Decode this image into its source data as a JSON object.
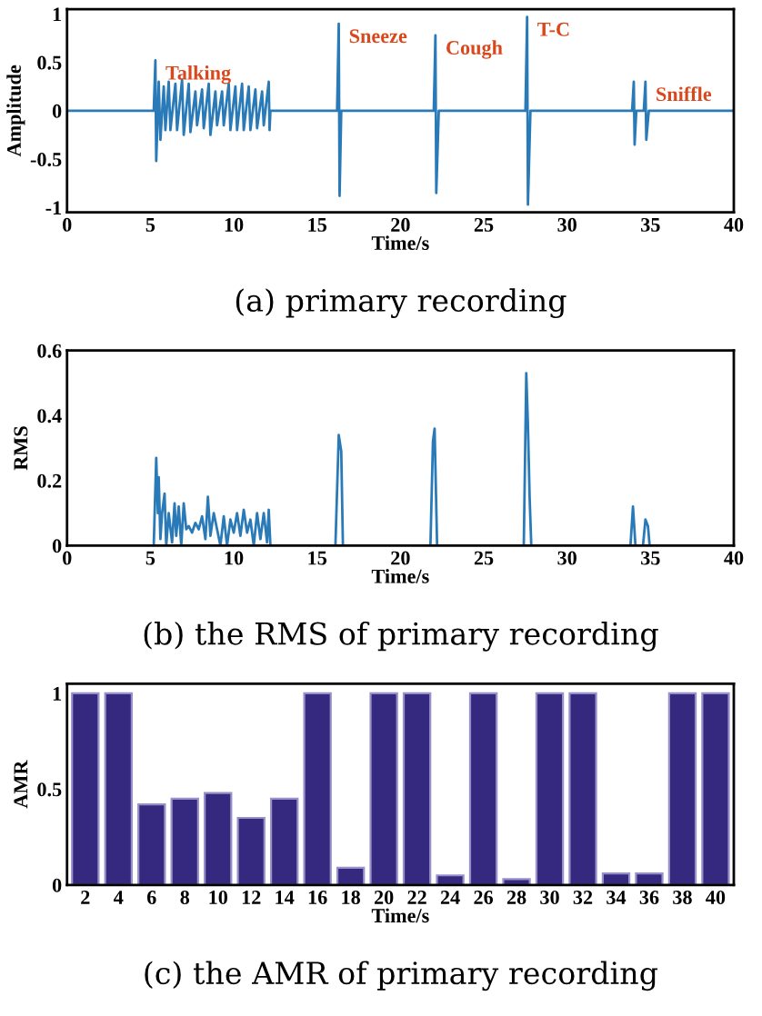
{
  "chart_data": [
    {
      "type": "line",
      "title": "(a) primary recording",
      "xlabel": "Time/s",
      "ylabel": "Amplitude",
      "xlim": [
        0,
        40
      ],
      "xticks": [
        0,
        5,
        10,
        15,
        20,
        25,
        30,
        35,
        40
      ],
      "ylim": [
        -1.05,
        1.05
      ],
      "yticks": [
        -1,
        -0.5,
        0,
        0.5,
        1
      ],
      "grid": false,
      "series": [
        {
          "color": "#2a7ab8",
          "x": [
            0,
            5.2,
            5.3,
            5.35,
            5.5,
            5.6,
            5.8,
            5.9,
            6.1,
            6.2,
            6.5,
            6.6,
            6.9,
            7.0,
            7.3,
            7.4,
            7.7,
            7.8,
            8.1,
            8.2,
            8.5,
            8.6,
            8.9,
            9.0,
            9.3,
            9.4,
            9.7,
            9.8,
            10.1,
            10.2,
            10.5,
            10.6,
            10.9,
            11.0,
            11.3,
            11.4,
            11.7,
            11.8,
            12.1,
            12.15,
            12.2,
            16.2,
            16.3,
            16.35,
            16.45,
            22.0,
            22.1,
            22.15,
            22.3,
            27.5,
            27.6,
            27.65,
            27.8,
            33.9,
            34.0,
            34.05,
            34.15,
            34.6,
            34.7,
            34.75,
            34.9,
            40
          ],
          "values": [
            0,
            0,
            0.52,
            -0.52,
            0.3,
            -0.3,
            0.25,
            -0.2,
            0.3,
            -0.2,
            0.28,
            -0.2,
            0.32,
            -0.25,
            0.28,
            -0.22,
            0.2,
            -0.15,
            0.22,
            -0.18,
            0.28,
            -0.25,
            0.2,
            -0.15,
            0.2,
            -0.15,
            0.28,
            -0.2,
            0.25,
            -0.2,
            0.28,
            -0.2,
            0.25,
            -0.2,
            0.22,
            -0.18,
            0.2,
            -0.15,
            0.3,
            -0.2,
            0,
            0,
            0.9,
            -0.88,
            0,
            0,
            0.78,
            -0.85,
            0,
            0,
            0.97,
            -0.97,
            0,
            0,
            0.3,
            -0.35,
            0,
            0,
            0.3,
            -0.3,
            0,
            0
          ]
        }
      ],
      "annotations": [
        {
          "text": "Talking",
          "x": 5.3,
          "y": 0.52
        },
        {
          "text": "Sneeze",
          "x": 16.3,
          "y": 0.9
        },
        {
          "text": "Cough",
          "x": 22.1,
          "y": 0.78
        },
        {
          "text": "T-C",
          "x": 27.6,
          "y": 0.97
        },
        {
          "text": "Sniffle",
          "x": 34.7,
          "y": 0.3
        }
      ]
    },
    {
      "type": "line",
      "title": "(b) the RMS of primary recording",
      "xlabel": "Time/s",
      "ylabel": "RMS",
      "xlim": [
        0,
        40
      ],
      "xticks": [
        0,
        5,
        10,
        15,
        20,
        25,
        30,
        35,
        40
      ],
      "ylim": [
        0,
        0.6
      ],
      "yticks": [
        0,
        0.2,
        0.4,
        0.6
      ],
      "grid": false,
      "series": [
        {
          "color": "#2a7ab8",
          "x": [
            0,
            5.2,
            5.35,
            5.45,
            5.5,
            5.6,
            5.7,
            5.85,
            5.95,
            6.1,
            6.3,
            6.45,
            6.55,
            6.7,
            6.85,
            7.0,
            7.15,
            7.3,
            7.5,
            7.7,
            7.9,
            8.1,
            8.3,
            8.45,
            8.6,
            8.8,
            9.0,
            9.2,
            9.4,
            9.6,
            9.8,
            10.0,
            10.2,
            10.4,
            10.6,
            10.8,
            11.0,
            11.2,
            11.4,
            11.6,
            11.8,
            12.0,
            12.1,
            12.2,
            16.1,
            16.3,
            16.45,
            16.55,
            21.8,
            21.95,
            22.05,
            22.2,
            27.4,
            27.55,
            27.65,
            27.75,
            27.85,
            33.8,
            33.95,
            34.1,
            34.55,
            34.7,
            34.85,
            34.95,
            40
          ],
          "values": [
            0,
            0,
            0.27,
            0.1,
            0.21,
            0.02,
            0.1,
            0.16,
            0,
            0.1,
            0.01,
            0.13,
            0.03,
            0.12,
            0,
            0.13,
            0.05,
            0.06,
            0.04,
            0.07,
            0.05,
            0.09,
            0.02,
            0.15,
            0.03,
            0.1,
            0.05,
            0,
            0.09,
            0,
            0.08,
            0.04,
            0.1,
            0.03,
            0.11,
            0.04,
            0.08,
            0,
            0.1,
            0.02,
            0.1,
            0.01,
            0.11,
            0,
            0,
            0.34,
            0.29,
            0,
            0,
            0.32,
            0.36,
            0,
            0,
            0.53,
            0.37,
            0.15,
            0,
            0,
            0.12,
            0,
            0,
            0.08,
            0.06,
            0,
            0
          ]
        }
      ]
    },
    {
      "type": "bar",
      "title": "(c) the AMR of primary recording",
      "xlabel": "Time/s",
      "ylabel": "AMR",
      "ylim": [
        0,
        1.05
      ],
      "yticks": [
        0,
        0.5,
        1
      ],
      "grid": false,
      "categories": [
        "2",
        "4",
        "6",
        "8",
        "10",
        "12",
        "14",
        "16",
        "18",
        "20",
        "22",
        "24",
        "26",
        "28",
        "30",
        "32",
        "34",
        "36",
        "38",
        "40"
      ],
      "series": [
        {
          "color": "#35287f",
          "values": [
            1,
            1,
            0.42,
            0.45,
            0.48,
            0.35,
            0.45,
            1,
            0.09,
            1,
            1,
            0.05,
            1,
            0.03,
            1,
            1,
            0.06,
            0.06,
            1,
            1
          ]
        }
      ]
    }
  ]
}
